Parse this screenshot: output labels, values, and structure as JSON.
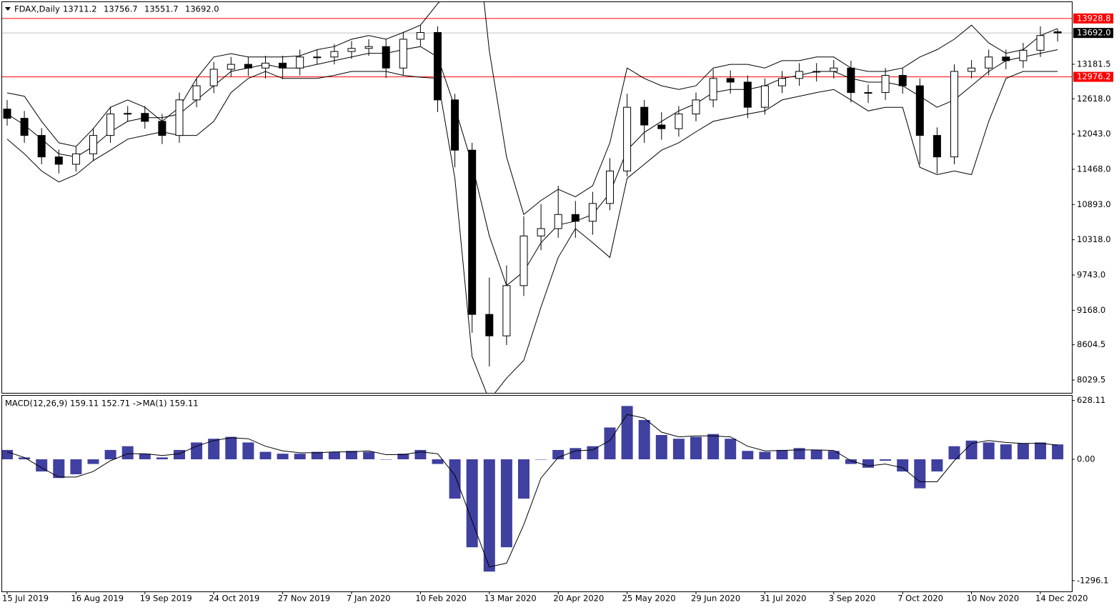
{
  "chart_data": [
    {
      "type": "candlestick",
      "title": "FDAX,Daily",
      "ohlc_labels": [
        "13711.2",
        "13756.7",
        "13551.7",
        "13692.0"
      ],
      "categories": [
        "15 Jul 2019",
        null,
        null,
        null,
        "16 Aug 2019",
        null,
        null,
        null,
        "19 Sep 2019",
        null,
        null,
        null,
        "24 Oct 2019",
        null,
        null,
        null,
        "27 Nov 2019",
        null,
        null,
        null,
        "7 Jan 2020",
        null,
        null,
        null,
        "10 Feb 2020",
        null,
        null,
        null,
        "13 Mar 2020",
        null,
        null,
        null,
        "20 Apr 2020",
        null,
        null,
        null,
        "25 May 2020",
        null,
        null,
        null,
        "29 Jun 2020",
        null,
        null,
        null,
        "31 Jul 2020",
        null,
        null,
        null,
        "3 Sep 2020",
        null,
        null,
        null,
        "7 Oct 2020",
        null,
        null,
        null,
        "10 Nov 2020",
        null,
        null,
        null,
        "14 Dec 2020",
        null
      ],
      "open": [
        12450,
        12300,
        12020,
        11670,
        11550,
        11720,
        12020,
        12370,
        12380,
        12250,
        12020,
        12600,
        12830,
        13100,
        13180,
        13120,
        13200,
        13120,
        13300,
        13300,
        13390,
        13440,
        13470,
        13120,
        13590,
        13700,
        12600,
        11780,
        9100,
        8750,
        9570,
        10380,
        10500,
        10730,
        10620,
        10910,
        11440,
        12480,
        12190,
        12130,
        12370,
        12600,
        12950,
        12890,
        12480,
        12830,
        12950,
        13065,
        13065,
        13120,
        12720,
        12720,
        13000,
        12830,
        12020,
        11670,
        13065,
        13120,
        13300,
        13240,
        13410,
        13711.2
      ],
      "high": [
        12600,
        12420,
        12140,
        11790,
        11840,
        12140,
        12490,
        12500,
        12500,
        12370,
        12720,
        12950,
        13220,
        13300,
        13300,
        13320,
        13320,
        13420,
        13420,
        13510,
        13560,
        13590,
        13590,
        13710,
        13820,
        13800,
        12700,
        11900,
        9700,
        9900,
        10700,
        10900,
        11200,
        10950,
        11100,
        11650,
        12700,
        12600,
        12400,
        12500,
        12720,
        13100,
        13080,
        13000,
        12950,
        13070,
        13200,
        13200,
        13250,
        13240,
        12850,
        13120,
        13120,
        12950,
        12150,
        13180,
        13250,
        13420,
        13420,
        13530,
        13800,
        13756.7
      ],
      "low": [
        12180,
        11900,
        11550,
        11400,
        11430,
        11600,
        11900,
        12250,
        12130,
        11880,
        11900,
        12480,
        12710,
        12980,
        12990,
        12950,
        12940,
        13000,
        13180,
        13180,
        13270,
        13320,
        12960,
        13000,
        13480,
        12400,
        11500,
        8800,
        8250,
        8600,
        9400,
        10150,
        10350,
        10350,
        10400,
        10800,
        11350,
        11900,
        11950,
        12000,
        12250,
        12480,
        12700,
        12300,
        12360,
        12710,
        12830,
        12900,
        12950,
        12560,
        12550,
        12600,
        12700,
        11550,
        11400,
        11550,
        12950,
        13000,
        13100,
        13120,
        13300,
        13551.7
      ],
      "close": [
        12300,
        12020,
        11670,
        11550,
        11720,
        12020,
        12370,
        12380,
        12250,
        12020,
        12600,
        12830,
        13100,
        13180,
        13120,
        13200,
        13120,
        13300,
        13300,
        13390,
        13440,
        13470,
        13120,
        13590,
        13700,
        12600,
        11780,
        9100,
        8750,
        9570,
        10380,
        10500,
        10730,
        10620,
        10910,
        11440,
        12480,
        12190,
        12130,
        12370,
        12600,
        12950,
        12890,
        12480,
        12830,
        12950,
        13065,
        13065,
        13120,
        12720,
        12720,
        13000,
        12830,
        12020,
        11670,
        13065,
        13120,
        13300,
        13240,
        13410,
        13650,
        13692
      ],
      "up_color": "#ffffff",
      "down_color": "#000000",
      "bands": {
        "color": "#000000",
        "upper": [
          12715,
          12660,
          12250,
          11900,
          11840,
          12130,
          12480,
          12600,
          12480,
          12250,
          12480,
          12950,
          13300,
          13355,
          13300,
          13300,
          13300,
          13320,
          13420,
          13470,
          13590,
          13650,
          13590,
          13700,
          13820,
          14170,
          14460,
          16000,
          13400,
          11670,
          10730,
          10960,
          11140,
          11020,
          11200,
          11900,
          13120,
          12950,
          12830,
          12770,
          12830,
          13120,
          13180,
          13180,
          13120,
          13240,
          13240,
          13300,
          13300,
          13120,
          13065,
          13065,
          13120,
          13300,
          13420,
          13590,
          13820,
          13530,
          13360,
          13420,
          13650,
          13765
        ],
        "middle": [
          12370,
          12190,
          11960,
          11720,
          11670,
          11840,
          12080,
          12250,
          12310,
          12310,
          12370,
          12600,
          12830,
          13065,
          13120,
          13180,
          13120,
          13120,
          13180,
          13240,
          13300,
          13360,
          13360,
          13420,
          13470,
          13300,
          12480,
          11550,
          10380,
          9570,
          9800,
          10270,
          10560,
          10620,
          10730,
          11080,
          11780,
          12070,
          12250,
          12420,
          12540,
          12720,
          12770,
          12770,
          12830,
          12950,
          13000,
          13065,
          13065,
          12950,
          12890,
          12890,
          12830,
          12660,
          12480,
          12600,
          12830,
          13065,
          13240,
          13300,
          13360,
          13420
        ],
        "lower": [
          11960,
          11720,
          11440,
          11260,
          11380,
          11610,
          11780,
          11960,
          12020,
          12080,
          12020,
          12020,
          12250,
          12720,
          12950,
          13065,
          12950,
          12950,
          12950,
          13000,
          13065,
          13065,
          13065,
          13000,
          12970,
          12950,
          11320,
          8410,
          7700,
          8060,
          8350,
          9220,
          10030,
          10500,
          10270,
          10030,
          11320,
          11550,
          11780,
          11900,
          12080,
          12250,
          12310,
          12370,
          12420,
          12600,
          12660,
          12720,
          12770,
          12600,
          12420,
          12480,
          12480,
          11500,
          11380,
          11440,
          11380,
          12250,
          12950,
          13065,
          13065,
          13065
        ]
      },
      "levels": [
        {
          "value": 13928.8,
          "label": "13928.8",
          "color": "#ff0000"
        },
        {
          "value": 12976.2,
          "label": "12976.2",
          "color": "#ff0000"
        },
        {
          "value": 13692.0,
          "label": "13692.0",
          "color": "#000000"
        }
      ],
      "ylim": [
        7820,
        14195
      ],
      "yticks": [
        13181.5,
        {
          "value": 12618,
          "label": "12618.0"
        },
        {
          "value": 12043,
          "label": "12043.0"
        },
        {
          "value": 11468,
          "label": "11468.0"
        },
        {
          "value": 10893,
          "label": "10893.0"
        },
        {
          "value": 10318,
          "label": "10318.0"
        },
        {
          "value": 9743,
          "label": "9743.0"
        },
        {
          "value": 9168,
          "label": "9168.0"
        },
        8604.5,
        8029.5
      ]
    },
    {
      "type": "macd",
      "title": "MACD(12,26,9) 159.11 152.71  ->MA(1) 159.11",
      "histogram": [
        100,
        20,
        -130,
        -200,
        -160,
        -50,
        100,
        140,
        60,
        20,
        100,
        180,
        220,
        240,
        180,
        80,
        60,
        60,
        80,
        80,
        90,
        80,
        0,
        60,
        100,
        -50,
        -420,
        -940,
        -1200,
        -940,
        -420,
        0,
        100,
        120,
        140,
        340,
        570,
        420,
        260,
        220,
        240,
        270,
        220,
        90,
        80,
        100,
        120,
        100,
        90,
        -50,
        -90,
        -15,
        -130,
        -310,
        -130,
        140,
        200,
        180,
        160,
        170,
        180,
        159.11
      ],
      "signal": [
        80,
        20,
        -90,
        -190,
        -190,
        -130,
        -15,
        60,
        60,
        40,
        60,
        140,
        200,
        230,
        220,
        140,
        90,
        70,
        70,
        80,
        80,
        90,
        50,
        50,
        80,
        60,
        -170,
        -660,
        -1150,
        -1110,
        -700,
        -200,
        20,
        90,
        100,
        200,
        480,
        440,
        290,
        240,
        250,
        250,
        240,
        140,
        90,
        95,
        100,
        100,
        95,
        -15,
        -70,
        -50,
        -90,
        -240,
        -240,
        -15,
        170,
        200,
        180,
        170,
        170,
        152.71
      ],
      "hist_color": "#000080",
      "signal_color": "#000000",
      "ylim": [
        -1412,
        672
      ],
      "yticks": [
        628.11,
        {
          "value": 0,
          "label": "0.00"
        },
        -1296.1
      ]
    }
  ]
}
